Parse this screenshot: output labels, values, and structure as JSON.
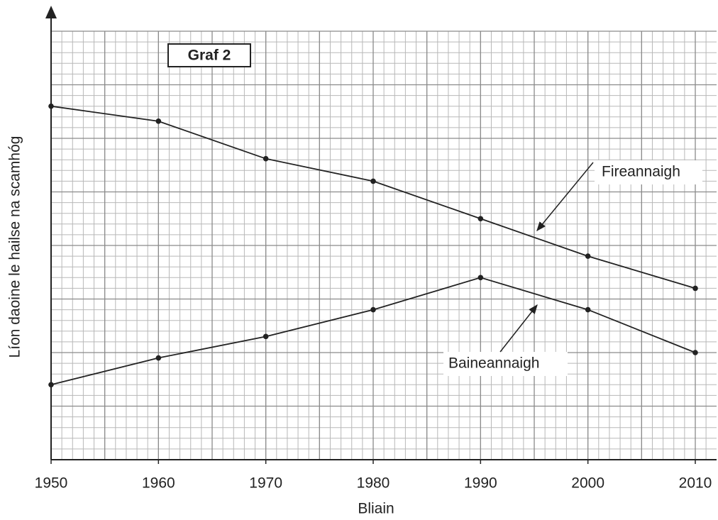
{
  "chart_data": {
    "type": "line",
    "title": "Graf 2",
    "xlabel": "Bliain",
    "ylabel": "Líon daoine le hailse na scamhóg",
    "x": [
      1950,
      1960,
      1970,
      1980,
      1990,
      2000,
      2010
    ],
    "xlim": [
      1950,
      2010
    ],
    "xticks": [
      1950,
      1960,
      1970,
      1980,
      1990,
      2000,
      2010
    ],
    "ylim": [
      0,
      40
    ],
    "yticks": [
      0,
      5,
      10,
      15,
      20,
      25,
      30,
      35,
      40
    ],
    "grid": true,
    "series": [
      {
        "name": "Fireannaigh",
        "color": "#222222",
        "values": [
          33,
          31.6,
          28.1,
          26,
          22.5,
          19,
          16
        ]
      },
      {
        "name": "Baineannaigh",
        "color": "#222222",
        "values": [
          7,
          9.5,
          11.5,
          14,
          17,
          14,
          10
        ]
      }
    ]
  }
}
